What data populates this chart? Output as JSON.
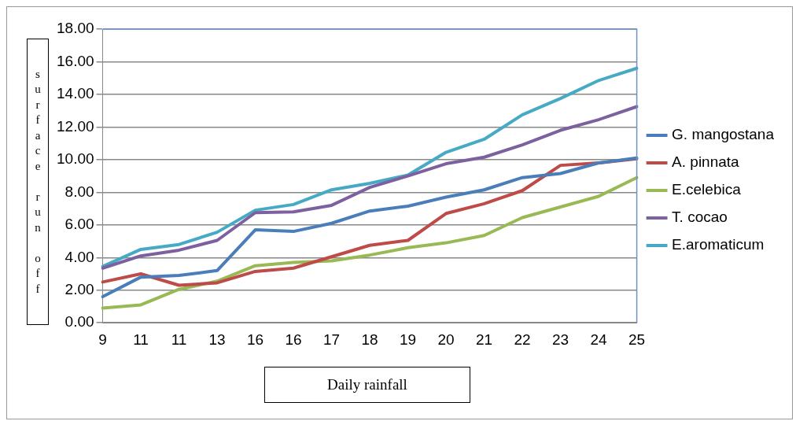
{
  "chart_data": {
    "type": "line",
    "xlabel": "Daily rainfall",
    "ylabel": "surface run off",
    "categories": [
      "9",
      "11",
      "11",
      "13",
      "16",
      "16",
      "17",
      "18",
      "19",
      "20",
      "21",
      "22",
      "23",
      "24",
      "25"
    ],
    "series": [
      {
        "name": "G. mangostana",
        "color": "#4a7ebb",
        "values": [
          1.6,
          2.8,
          2.9,
          3.2,
          5.7,
          5.6,
          6.1,
          6.85,
          7.15,
          7.7,
          8.15,
          8.9,
          9.15,
          9.8,
          10.1
        ]
      },
      {
        "name": "A. pinnata",
        "color": "#be4b48",
        "values": [
          2.5,
          3.0,
          2.3,
          2.45,
          3.15,
          3.35,
          4.05,
          4.75,
          5.05,
          6.7,
          7.3,
          8.1,
          9.65,
          9.8,
          10.05
        ]
      },
      {
        "name": "E.celebica",
        "color": "#98b954",
        "values": [
          0.9,
          1.1,
          2.05,
          2.55,
          3.5,
          3.7,
          3.8,
          4.15,
          4.6,
          4.9,
          5.35,
          6.45,
          7.1,
          7.75,
          8.9
        ]
      },
      {
        "name": "T. cocao",
        "color": "#7d60a0",
        "values": [
          3.35,
          4.1,
          4.45,
          5.05,
          6.75,
          6.8,
          7.2,
          8.3,
          9.0,
          9.75,
          10.15,
          10.9,
          11.8,
          12.45,
          13.25
        ]
      },
      {
        "name": "E.aromaticum",
        "color": "#46aac5",
        "values": [
          3.45,
          4.5,
          4.8,
          5.55,
          6.9,
          7.25,
          8.15,
          8.55,
          9.05,
          10.45,
          11.25,
          12.75,
          13.75,
          14.85,
          15.6
        ]
      }
    ],
    "ylim": [
      0,
      18
    ],
    "yticks": [
      {
        "value": 0,
        "label": "0.00"
      },
      {
        "value": 2,
        "label": "2.00"
      },
      {
        "value": 4,
        "label": "4.00"
      },
      {
        "value": 6,
        "label": "6.00"
      },
      {
        "value": 8,
        "label": "8.00"
      },
      {
        "value": 10,
        "label": "10.00"
      },
      {
        "value": 12,
        "label": "12.00"
      },
      {
        "value": 14,
        "label": "14.00"
      },
      {
        "value": 16,
        "label": "16.00"
      },
      {
        "value": 18,
        "label": "18.00"
      }
    ],
    "grid": "y",
    "legend": "right",
    "marker": "none",
    "line_style": "solid"
  }
}
